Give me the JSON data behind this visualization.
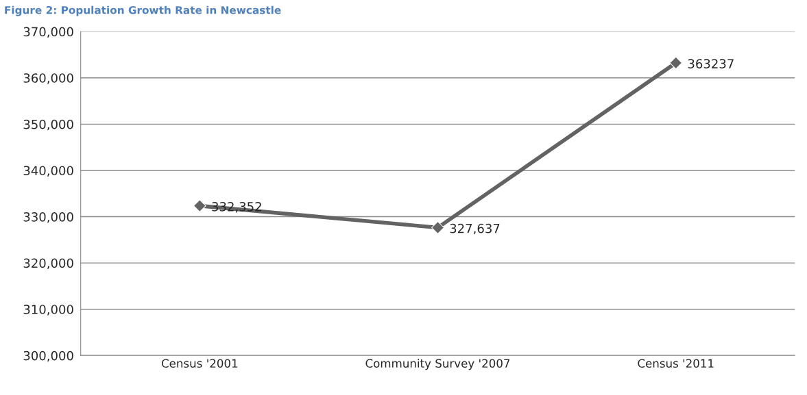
{
  "chart_data": {
    "type": "line",
    "title": "Figure 2: Population Growth Rate in Newcastle",
    "categories": [
      "Census '2001",
      "Community Survey '2007",
      "Census '2011"
    ],
    "series": [
      {
        "color": "#636363",
        "values": [
          332352,
          327637,
          363237
        ],
        "value_labels": [
          "332,352",
          "327,637",
          "363237"
        ]
      }
    ],
    "ylim": [
      300000,
      370000
    ],
    "yticks": [
      {
        "value": 300000,
        "label": "300,000"
      },
      {
        "value": 310000,
        "label": "310,000"
      },
      {
        "value": 320000,
        "label": "320,000"
      },
      {
        "value": 330000,
        "label": "330,000"
      },
      {
        "value": 340000,
        "label": "340,000"
      },
      {
        "value": 350000,
        "label": "350,000"
      },
      {
        "value": 360000,
        "label": "360,000"
      },
      {
        "value": 370000,
        "label": "370,000"
      }
    ],
    "grid": "y",
    "marker": "diamond",
    "line_style": "solid",
    "legend": false
  }
}
